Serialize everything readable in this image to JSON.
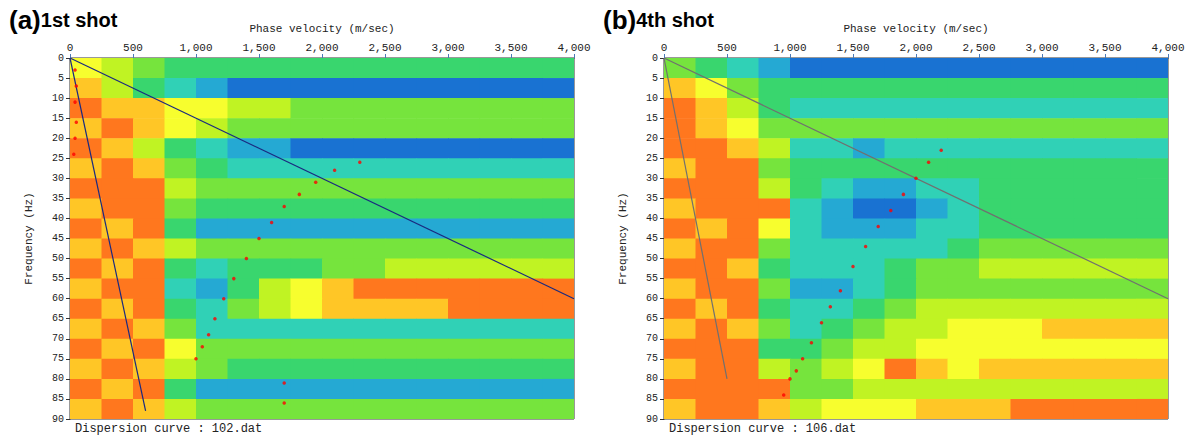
{
  "chart_data": [
    {
      "type": "heatmap",
      "label": "(a)",
      "title": "1st shot",
      "caption": "Dispersion curve : 102.dat",
      "x_label": "Phase velocity (m/sec)",
      "y_label": "Frequency (Hz)",
      "xlim": [
        0,
        4000
      ],
      "xticks": [
        0,
        500,
        1000,
        1500,
        2000,
        2500,
        3000,
        3500,
        4000
      ],
      "ylim": [
        0,
        90
      ],
      "yticks": [
        0,
        5,
        10,
        15,
        20,
        25,
        30,
        35,
        40,
        45,
        50,
        55,
        60,
        65,
        70,
        75,
        80,
        85,
        90
      ],
      "grid": false,
      "velocity_bins": [
        0,
        250,
        500,
        750,
        1000,
        1250,
        1500,
        1750,
        2000,
        2250,
        2500,
        2750,
        3000,
        3250,
        3500,
        3750,
        4000
      ],
      "frequency_bins": [
        0,
        5,
        10,
        15,
        20,
        25,
        30,
        35,
        40,
        45,
        50,
        55,
        60,
        65,
        70,
        75,
        80,
        85,
        90
      ],
      "color_range": [
        0,
        10
      ],
      "cells": [
        [
          7,
          6,
          5,
          4,
          4,
          4,
          4,
          4,
          4,
          4,
          4,
          4,
          4,
          4,
          4,
          4
        ],
        [
          8,
          6,
          4,
          3,
          2,
          1,
          1,
          1,
          1,
          1,
          1,
          1,
          1,
          1,
          1,
          1
        ],
        [
          9,
          8,
          8,
          7,
          7,
          6,
          6,
          5,
          5,
          5,
          5,
          5,
          5,
          5,
          5,
          5
        ],
        [
          8,
          9,
          8,
          7,
          6,
          5,
          5,
          5,
          5,
          5,
          5,
          5,
          5,
          5,
          5,
          5
        ],
        [
          9,
          8,
          6,
          4,
          3,
          2,
          2,
          1,
          1,
          1,
          1,
          1,
          1,
          1,
          1,
          1
        ],
        [
          8,
          9,
          8,
          5,
          4,
          3,
          3,
          3,
          3,
          3,
          3,
          3,
          3,
          3,
          3,
          3
        ],
        [
          9,
          9,
          9,
          6,
          5,
          5,
          5,
          5,
          5,
          5,
          5,
          5,
          5,
          5,
          5,
          5
        ],
        [
          8,
          9,
          9,
          5,
          4,
          4,
          4,
          4,
          4,
          4,
          4,
          4,
          4,
          4,
          4,
          4
        ],
        [
          9,
          8,
          9,
          4,
          2,
          2,
          2,
          2,
          2,
          2,
          2,
          2,
          2,
          2,
          2,
          2
        ],
        [
          8,
          9,
          8,
          6,
          5,
          5,
          5,
          5,
          5,
          5,
          5,
          5,
          5,
          5,
          5,
          5
        ],
        [
          9,
          8,
          9,
          4,
          3,
          4,
          4,
          4,
          5,
          5,
          6,
          6,
          6,
          6,
          6,
          6
        ],
        [
          8,
          9,
          9,
          3,
          2,
          4,
          6,
          7,
          8,
          9,
          9,
          9,
          9,
          9,
          9,
          9
        ],
        [
          9,
          8,
          9,
          4,
          3,
          5,
          6,
          7,
          8,
          8,
          8,
          8,
          9,
          9,
          9,
          9
        ],
        [
          8,
          9,
          8,
          5,
          3,
          3,
          3,
          3,
          3,
          3,
          3,
          3,
          3,
          3,
          3,
          3
        ],
        [
          9,
          8,
          9,
          7,
          5,
          5,
          5,
          5,
          5,
          5,
          5,
          5,
          5,
          5,
          5,
          5
        ],
        [
          8,
          9,
          8,
          6,
          5,
          4,
          4,
          4,
          4,
          4,
          4,
          4,
          4,
          4,
          4,
          4
        ],
        [
          9,
          8,
          9,
          4,
          2,
          2,
          2,
          2,
          2,
          2,
          2,
          2,
          2,
          2,
          2,
          2
        ],
        [
          8,
          9,
          8,
          6,
          5,
          5,
          5,
          5,
          5,
          5,
          5,
          5,
          5,
          5,
          5,
          5
        ]
      ],
      "series": [
        {
          "type": "line",
          "color": "#1a2a80",
          "x": [
            0,
            4000
          ],
          "y": [
            0,
            60
          ]
        },
        {
          "type": "line",
          "color": "#1a2a80",
          "x": [
            0,
            600
          ],
          "y": [
            0,
            88
          ]
        },
        {
          "type": "scatter",
          "color": "#ff0000",
          "marker": "circle",
          "x": [
            40,
            50,
            40,
            50,
            40,
            30,
            2300,
            2100,
            1950,
            1820,
            1700,
            1600,
            1500,
            1400,
            1300,
            1220,
            1150,
            1100,
            1050,
            1000,
            1700,
            1700
          ],
          "y": [
            3,
            7,
            11,
            16,
            20,
            24,
            26,
            28,
            31,
            34,
            37,
            41,
            45,
            50,
            55,
            60,
            65,
            69,
            72,
            75,
            81,
            86
          ]
        }
      ]
    },
    {
      "type": "heatmap",
      "label": "(b)",
      "title": "4th shot",
      "caption": "Dispersion curve : 106.dat",
      "x_label": "Phase velocity (m/sec)",
      "y_label": "Frequency (Hz)",
      "xlim": [
        0,
        4000
      ],
      "xticks": [
        0,
        500,
        1000,
        1500,
        2000,
        2500,
        3000,
        3500,
        4000
      ],
      "ylim": [
        0,
        90
      ],
      "yticks": [
        0,
        5,
        10,
        15,
        20,
        25,
        30,
        35,
        40,
        45,
        50,
        55,
        60,
        65,
        70,
        75,
        80,
        85,
        90
      ],
      "grid": false,
      "velocity_bins": [
        0,
        250,
        500,
        750,
        1000,
        1250,
        1500,
        1750,
        2000,
        2250,
        2500,
        2750,
        3000,
        3250,
        3500,
        3750,
        4000
      ],
      "frequency_bins": [
        0,
        5,
        10,
        15,
        20,
        25,
        30,
        35,
        40,
        45,
        50,
        55,
        60,
        65,
        70,
        75,
        80,
        85,
        90
      ],
      "color_range": [
        0,
        10
      ],
      "cells": [
        [
          5,
          4,
          3,
          2,
          1,
          1,
          1,
          1,
          1,
          1,
          1,
          1,
          1,
          1,
          1,
          1
        ],
        [
          8,
          7,
          5,
          4,
          4,
          4,
          4,
          4,
          4,
          4,
          4,
          4,
          4,
          4,
          4,
          4
        ],
        [
          9,
          8,
          6,
          4,
          3,
          3,
          3,
          3,
          3,
          3,
          3,
          3,
          3,
          3,
          3,
          3
        ],
        [
          9,
          8,
          7,
          5,
          5,
          5,
          5,
          5,
          5,
          5,
          5,
          5,
          5,
          5,
          5,
          5
        ],
        [
          9,
          9,
          8,
          6,
          3,
          3,
          2,
          3,
          3,
          3,
          3,
          3,
          3,
          3,
          3,
          3
        ],
        [
          8,
          9,
          9,
          5,
          4,
          4,
          4,
          4,
          4,
          4,
          4,
          4,
          4,
          4,
          4,
          4
        ],
        [
          9,
          9,
          9,
          6,
          4,
          3,
          2,
          2,
          3,
          3,
          4,
          4,
          4,
          4,
          4,
          4
        ],
        [
          8,
          9,
          9,
          9,
          3,
          2,
          1,
          1,
          2,
          3,
          4,
          4,
          4,
          4,
          4,
          4
        ],
        [
          9,
          8,
          9,
          7,
          3,
          2,
          2,
          2,
          3,
          3,
          4,
          4,
          4,
          4,
          4,
          4
        ],
        [
          8,
          9,
          9,
          5,
          3,
          3,
          3,
          3,
          3,
          4,
          5,
          5,
          5,
          5,
          5,
          5
        ],
        [
          9,
          9,
          8,
          4,
          3,
          3,
          3,
          4,
          5,
          5,
          6,
          6,
          6,
          6,
          6,
          6
        ],
        [
          8,
          9,
          9,
          5,
          2,
          2,
          3,
          4,
          5,
          5,
          5,
          5,
          5,
          5,
          5,
          5
        ],
        [
          9,
          8,
          9,
          4,
          3,
          3,
          4,
          5,
          6,
          6,
          6,
          6,
          6,
          6,
          6,
          6
        ],
        [
          8,
          9,
          8,
          5,
          3,
          4,
          5,
          6,
          6,
          7,
          7,
          7,
          8,
          8,
          8,
          8
        ],
        [
          9,
          9,
          9,
          4,
          4,
          5,
          6,
          6,
          7,
          7,
          7,
          7,
          7,
          7,
          7,
          7
        ],
        [
          8,
          9,
          9,
          6,
          5,
          6,
          7,
          9,
          8,
          7,
          8,
          8,
          8,
          8,
          8,
          8
        ],
        [
          9,
          9,
          9,
          9,
          5,
          5,
          6,
          6,
          6,
          6,
          6,
          6,
          6,
          6,
          6,
          6
        ],
        [
          8,
          9,
          9,
          8,
          6,
          7,
          7,
          7,
          8,
          8,
          8,
          9,
          9,
          9,
          9,
          9
        ]
      ],
      "series": [
        {
          "type": "line",
          "color": "#707070",
          "x": [
            0,
            4000
          ],
          "y": [
            0,
            60
          ]
        },
        {
          "type": "line",
          "color": "#707070",
          "x": [
            0,
            500
          ],
          "y": [
            0,
            80
          ]
        },
        {
          "type": "scatter",
          "color": "#ff0000",
          "marker": "circle",
          "x": [
            2200,
            2100,
            2000,
            1900,
            1800,
            1700,
            1600,
            1500,
            1400,
            1320,
            1250,
            1170,
            1100,
            1050,
            1000,
            950
          ],
          "y": [
            23,
            26,
            30,
            34,
            38,
            42,
            47,
            52,
            58,
            62,
            66,
            71,
            75,
            78,
            80,
            84
          ]
        }
      ]
    }
  ]
}
